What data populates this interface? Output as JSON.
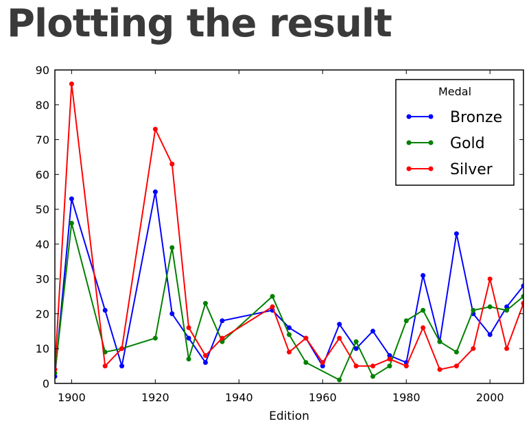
{
  "slide": {
    "title": "Plotting the result"
  },
  "chart_data": {
    "type": "line",
    "xlabel": "Edition",
    "ylabel": "",
    "xlim": [
      1896,
      2008
    ],
    "ylim": [
      0,
      90
    ],
    "xticks": [
      1900,
      1920,
      1940,
      1960,
      1980,
      2000
    ],
    "yticks": [
      0,
      10,
      20,
      30,
      40,
      50,
      60,
      70,
      80,
      90
    ],
    "grid": false,
    "legend": {
      "title": "Medal",
      "placement": "top-right"
    },
    "series": [
      {
        "name": "Bronze",
        "color": "#0000ff",
        "points": [
          [
            1896,
            2
          ],
          [
            1900,
            53
          ],
          [
            1908,
            21
          ],
          [
            1912,
            5
          ],
          [
            1920,
            55
          ],
          [
            1924,
            20
          ],
          [
            1928,
            13
          ],
          [
            1932,
            6
          ],
          [
            1936,
            18
          ],
          [
            1948,
            21
          ],
          [
            1952,
            16
          ],
          [
            1956,
            13
          ],
          [
            1960,
            5
          ],
          [
            1964,
            17
          ],
          [
            1968,
            10
          ],
          [
            1972,
            15
          ],
          [
            1976,
            8
          ],
          [
            1980,
            6
          ],
          [
            1984,
            31
          ],
          [
            1988,
            12
          ],
          [
            1992,
            43
          ],
          [
            1996,
            20
          ],
          [
            2000,
            14
          ],
          [
            2004,
            22
          ],
          [
            2008,
            28
          ]
        ]
      },
      {
        "name": "Gold",
        "color": "#008000",
        "points": [
          [
            1896,
            3
          ],
          [
            1900,
            46
          ],
          [
            1908,
            9
          ],
          [
            1912,
            10
          ],
          [
            1920,
            13
          ],
          [
            1924,
            39
          ],
          [
            1928,
            7
          ],
          [
            1932,
            23
          ],
          [
            1936,
            12
          ],
          [
            1948,
            25
          ],
          [
            1952,
            14
          ],
          [
            1956,
            6
          ],
          [
            1964,
            1
          ],
          [
            1968,
            12
          ],
          [
            1972,
            2
          ],
          [
            1976,
            5
          ],
          [
            1980,
            18
          ],
          [
            1984,
            21
          ],
          [
            1988,
            12
          ],
          [
            1992,
            9
          ],
          [
            1996,
            21
          ],
          [
            2000,
            22
          ],
          [
            2004,
            21
          ],
          [
            2008,
            25
          ]
        ]
      },
      {
        "name": "Silver",
        "color": "#ff0000",
        "points": [
          [
            1896,
            4
          ],
          [
            1900,
            86
          ],
          [
            1908,
            5
          ],
          [
            1912,
            10
          ],
          [
            1920,
            73
          ],
          [
            1924,
            63
          ],
          [
            1928,
            16
          ],
          [
            1932,
            8
          ],
          [
            1936,
            13
          ],
          [
            1948,
            22
          ],
          [
            1952,
            9
          ],
          [
            1956,
            13
          ],
          [
            1960,
            6
          ],
          [
            1964,
            13
          ],
          [
            1968,
            5
          ],
          [
            1972,
            5
          ],
          [
            1976,
            7
          ],
          [
            1980,
            5
          ],
          [
            1984,
            16
          ],
          [
            1988,
            4
          ],
          [
            1992,
            5
          ],
          [
            1996,
            10
          ],
          [
            2000,
            30
          ],
          [
            2004,
            10
          ],
          [
            2008,
            23
          ]
        ]
      }
    ]
  }
}
